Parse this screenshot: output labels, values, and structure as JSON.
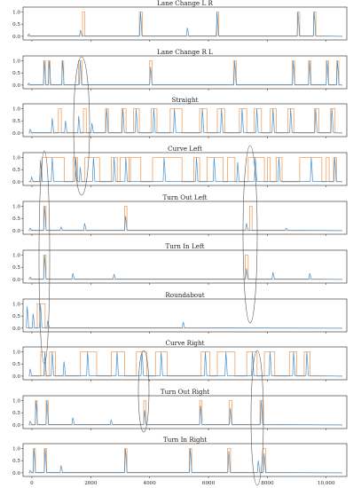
{
  "chart_data": {
    "type": "line",
    "x_ticks": [
      0,
      2000,
      4000,
      6000,
      8000,
      10000
    ],
    "x_tick_labels": [
      "0",
      "2000",
      "4000",
      "6000",
      "8000",
      "10,000"
    ],
    "xlim": [
      -300,
      10700
    ],
    "y_ticks": [
      0.0,
      0.5,
      1.0
    ],
    "y_tick_labels": [
      "0.0",
      "0.5",
      "1.0"
    ],
    "ylim": [
      -0.15,
      1.2
    ],
    "colors": {
      "series_a": "#4a90c8",
      "series_b": "#f0a060"
    },
    "panels": [
      {
        "title": "Lane Change L R",
        "series_b_segments": [
          [
            1720,
            1800
          ],
          [
            3650,
            3750
          ],
          [
            6280,
            6350
          ],
          [
            9020,
            9100
          ],
          [
            9570,
            9650
          ]
        ],
        "series_a_peaks": [
          [
            -100,
            0.1
          ],
          [
            1660,
            0.25
          ],
          [
            3700,
            1.0
          ],
          [
            5290,
            0.35
          ],
          [
            6300,
            1.0
          ],
          [
            9050,
            1.0
          ],
          [
            9600,
            1.0
          ]
        ]
      },
      {
        "title": "Lane Change R L",
        "series_b_segments": [
          [
            400,
            460
          ],
          [
            560,
            620
          ],
          [
            1020,
            1080
          ],
          [
            1580,
            1700
          ],
          [
            4000,
            4080
          ],
          [
            6850,
            6950
          ],
          [
            8850,
            8930
          ],
          [
            9400,
            9480
          ],
          [
            10000,
            10080
          ],
          [
            10350,
            10430
          ]
        ],
        "series_a_peaks": [
          [
            -100,
            0.08
          ],
          [
            430,
            1.0
          ],
          [
            600,
            1.0
          ],
          [
            1050,
            1.0
          ],
          [
            1650,
            1.0
          ],
          [
            4040,
            0.75
          ],
          [
            6900,
            1.0
          ],
          [
            8890,
            1.0
          ],
          [
            9440,
            1.0
          ],
          [
            10040,
            1.0
          ],
          [
            10390,
            1.0
          ]
        ]
      },
      {
        "title": "Straight",
        "series_b_segments": [
          [
            900,
            1000
          ],
          [
            1750,
            1850
          ],
          [
            2500,
            2600
          ],
          [
            3050,
            3200
          ],
          [
            3450,
            3650
          ],
          [
            4050,
            4250
          ],
          [
            4700,
            5100
          ],
          [
            5700,
            5950
          ],
          [
            6300,
            6550
          ],
          [
            7050,
            7300
          ],
          [
            7550,
            7800
          ],
          [
            8100,
            8300
          ],
          [
            8700,
            8900
          ],
          [
            9600,
            9750
          ],
          [
            10150,
            10300
          ]
        ],
        "series_a_peaks": [
          [
            -50,
            0.15
          ],
          [
            700,
            0.6
          ],
          [
            1150,
            0.5
          ],
          [
            1600,
            0.7
          ],
          [
            2050,
            0.4
          ],
          [
            2550,
            1.0
          ],
          [
            3100,
            1.0
          ],
          [
            3550,
            1.0
          ],
          [
            4150,
            1.0
          ],
          [
            4850,
            1.0
          ],
          [
            5800,
            1.0
          ],
          [
            6450,
            1.0
          ],
          [
            7150,
            1.0
          ],
          [
            7650,
            1.0
          ],
          [
            8200,
            1.0
          ],
          [
            8800,
            1.0
          ],
          [
            9650,
            1.0
          ],
          [
            10200,
            1.0
          ]
        ]
      },
      {
        "title": "Curve Left",
        "series_b_segments": [
          [
            350,
            1100
          ],
          [
            1400,
            1550
          ],
          [
            1800,
            2300
          ],
          [
            2700,
            2900
          ],
          [
            3000,
            3300
          ],
          [
            3350,
            3700
          ],
          [
            4100,
            5100
          ],
          [
            5500,
            5700
          ],
          [
            5950,
            6500
          ],
          [
            6650,
            6900
          ],
          [
            7350,
            7900
          ],
          [
            8000,
            8100
          ],
          [
            8300,
            8500
          ],
          [
            9100,
            9850
          ],
          [
            10000,
            10100
          ],
          [
            10250,
            10350
          ]
        ],
        "series_a_peaks": [
          [
            0,
            0.2
          ],
          [
            300,
            0.9
          ],
          [
            700,
            1.0
          ],
          [
            1500,
            1.0
          ],
          [
            1650,
            0.6
          ],
          [
            2100,
            1.0
          ],
          [
            2800,
            1.0
          ],
          [
            3200,
            1.0
          ],
          [
            4500,
            1.0
          ],
          [
            5600,
            1.0
          ],
          [
            6200,
            1.0
          ],
          [
            7000,
            0.8
          ],
          [
            7600,
            1.0
          ],
          [
            8400,
            1.0
          ],
          [
            9500,
            1.0
          ],
          [
            10300,
            1.0
          ]
        ]
      },
      {
        "title": "Turn Out Left",
        "series_b_segments": [
          [
            400,
            480
          ],
          [
            3150,
            3230
          ],
          [
            7400,
            7480
          ]
        ],
        "series_a_peaks": [
          [
            -50,
            0.1
          ],
          [
            440,
            1.0
          ],
          [
            1000,
            0.15
          ],
          [
            1800,
            0.3
          ],
          [
            3190,
            0.6
          ],
          [
            7300,
            0.3
          ],
          [
            8650,
            0.1
          ]
        ]
      },
      {
        "title": "Turn In Left",
        "series_b_segments": [
          [
            400,
            480
          ],
          [
            7250,
            7350
          ]
        ],
        "series_a_peaks": [
          [
            -50,
            0.1
          ],
          [
            440,
            1.0
          ],
          [
            1400,
            0.25
          ],
          [
            2800,
            0.2
          ],
          [
            7300,
            0.45
          ],
          [
            8200,
            0.3
          ],
          [
            9450,
            0.25
          ]
        ]
      },
      {
        "title": "Roundabout",
        "series_b_segments": [
          [
            180,
            450
          ]
        ],
        "series_a_peaks": [
          [
            -150,
            0.9
          ],
          [
            50,
            0.6
          ],
          [
            300,
            1.0
          ],
          [
            550,
            0.3
          ],
          [
            5150,
            0.25
          ]
        ]
      },
      {
        "title": "Curve Right",
        "series_b_segments": [
          [
            300,
            450
          ],
          [
            600,
            800
          ],
          [
            1650,
            2200
          ],
          [
            2700,
            3150
          ],
          [
            3550,
            3900
          ],
          [
            4200,
            4600
          ],
          [
            5750,
            6050
          ],
          [
            6300,
            6900
          ],
          [
            7300,
            7650
          ],
          [
            7900,
            8250
          ],
          [
            8750,
            9000
          ],
          [
            9250,
            9450
          ]
        ],
        "series_a_peaks": [
          [
            -50,
            0.3
          ],
          [
            450,
            1.0
          ],
          [
            700,
            1.0
          ],
          [
            1100,
            0.6
          ],
          [
            1900,
            1.0
          ],
          [
            2900,
            1.0
          ],
          [
            3750,
            1.0
          ],
          [
            4400,
            1.0
          ],
          [
            5900,
            1.0
          ],
          [
            6600,
            1.0
          ],
          [
            7500,
            1.0
          ],
          [
            8100,
            1.0
          ],
          [
            8900,
            1.0
          ],
          [
            9350,
            1.0
          ]
        ]
      },
      {
        "title": "Turn Out Right",
        "series_b_segments": [
          [
            120,
            180
          ],
          [
            480,
            560
          ],
          [
            3800,
            3880
          ],
          [
            5700,
            5780
          ],
          [
            6700,
            6800
          ],
          [
            7750,
            7850
          ]
        ],
        "series_a_peaks": [
          [
            -50,
            0.15
          ],
          [
            150,
            1.0
          ],
          [
            520,
            1.0
          ],
          [
            1400,
            0.3
          ],
          [
            2700,
            0.2
          ],
          [
            3840,
            0.6
          ],
          [
            5740,
            0.8
          ],
          [
            6750,
            0.7
          ],
          [
            7800,
            1.0
          ]
        ]
      },
      {
        "title": "Turn In Right",
        "series_b_segments": [
          [
            50,
            120
          ],
          [
            420,
            500
          ],
          [
            3150,
            3230
          ],
          [
            5350,
            5430
          ],
          [
            6650,
            6750
          ],
          [
            7850,
            7950
          ]
        ],
        "series_a_peaks": [
          [
            -50,
            0.1
          ],
          [
            80,
            1.0
          ],
          [
            460,
            1.0
          ],
          [
            1000,
            0.3
          ],
          [
            3190,
            1.0
          ],
          [
            5390,
            1.0
          ],
          [
            6700,
            0.9
          ],
          [
            7700,
            0.5
          ],
          [
            7900,
            0.8
          ]
        ]
      }
    ]
  }
}
